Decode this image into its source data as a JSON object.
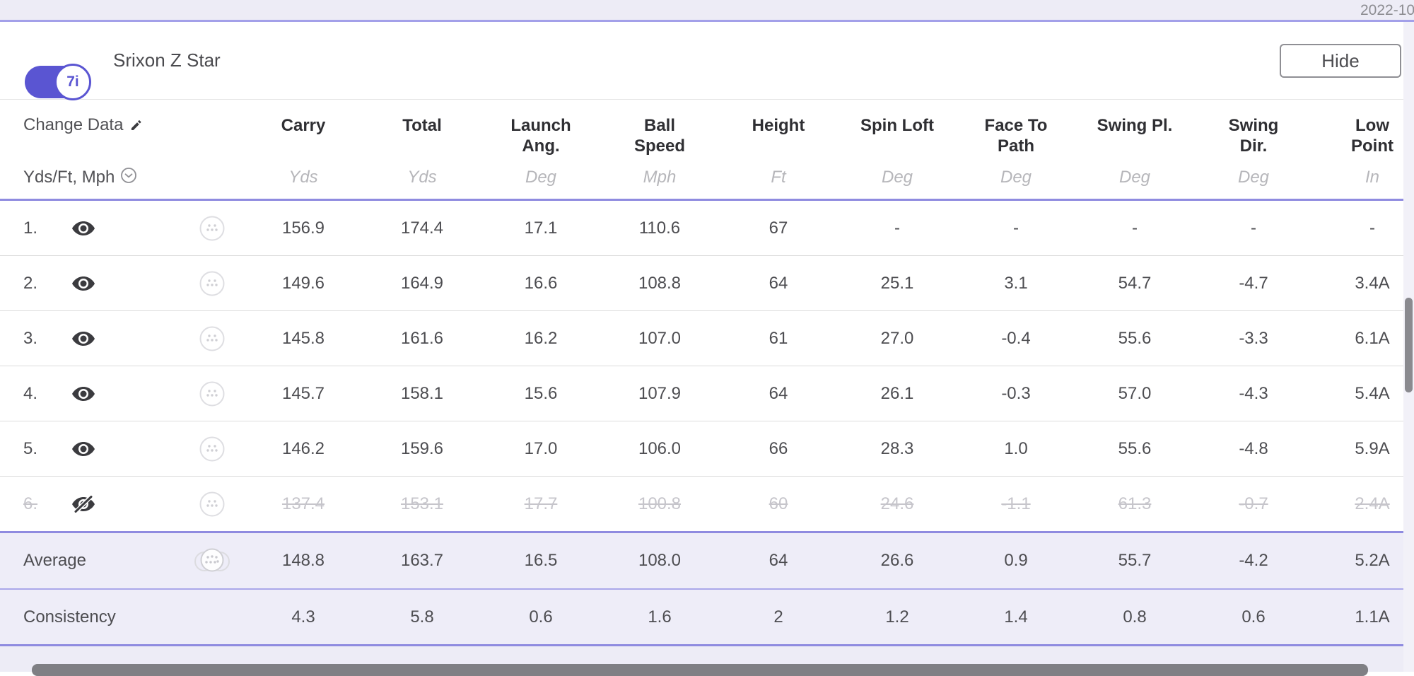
{
  "top_band": {
    "date": "2022-10"
  },
  "club_header": {
    "club_label": "7i",
    "ball_name": "Srixon Z Star",
    "hide_label": "Hide"
  },
  "table": {
    "change_data_label": "Change Data",
    "units_selector_label": "Yds/Ft, Mph",
    "columns": [
      {
        "label": "Carry",
        "unit": "Yds"
      },
      {
        "label": "Total",
        "unit": "Yds"
      },
      {
        "label": "Launch\nAng.",
        "unit": "Deg"
      },
      {
        "label": "Ball\nSpeed",
        "unit": "Mph"
      },
      {
        "label": "Height",
        "unit": "Ft"
      },
      {
        "label": "Spin Loft",
        "unit": "Deg"
      },
      {
        "label": "Face To\nPath",
        "unit": "Deg"
      },
      {
        "label": "Swing Pl.",
        "unit": "Deg"
      },
      {
        "label": "Swing\nDir.",
        "unit": "Deg"
      },
      {
        "label": "Low\nPoint",
        "unit": "In"
      }
    ],
    "shots": [
      {
        "num": "1.",
        "visible": true,
        "values": [
          "156.9",
          "174.4",
          "17.1",
          "110.6",
          "67",
          "-",
          "-",
          "-",
          "-",
          "-"
        ]
      },
      {
        "num": "2.",
        "visible": true,
        "values": [
          "149.6",
          "164.9",
          "16.6",
          "108.8",
          "64",
          "25.1",
          "3.1",
          "54.7",
          "-4.7",
          "3.4A"
        ]
      },
      {
        "num": "3.",
        "visible": true,
        "values": [
          "145.8",
          "161.6",
          "16.2",
          "107.0",
          "61",
          "27.0",
          "-0.4",
          "55.6",
          "-3.3",
          "6.1A"
        ]
      },
      {
        "num": "4.",
        "visible": true,
        "values": [
          "145.7",
          "158.1",
          "15.6",
          "107.9",
          "64",
          "26.1",
          "-0.3",
          "57.0",
          "-4.3",
          "5.4A"
        ]
      },
      {
        "num": "5.",
        "visible": true,
        "values": [
          "146.2",
          "159.6",
          "17.0",
          "106.0",
          "66",
          "28.3",
          "1.0",
          "55.6",
          "-4.8",
          "5.9A"
        ]
      },
      {
        "num": "6.",
        "visible": false,
        "values": [
          "137.4",
          "153.1",
          "17.7",
          "100.8",
          "60",
          "24.6",
          "-1.1",
          "61.3",
          "-0.7",
          "2.4A"
        ]
      }
    ],
    "average": {
      "label": "Average",
      "values": [
        "148.8",
        "163.7",
        "16.5",
        "108.0",
        "64",
        "26.6",
        "0.9",
        "55.7",
        "-4.2",
        "5.2A"
      ]
    },
    "consistency": {
      "label": "Consistency",
      "values": [
        "4.3",
        "5.8",
        "0.6",
        "1.6",
        "2",
        "1.2",
        "1.4",
        "0.8",
        "0.6",
        "1.1A"
      ]
    }
  },
  "colors": {
    "accent": "#5a55d2",
    "purple_border": "#8f8be0",
    "band_bg": "#edecf6",
    "summary_row_bg": "#eeedf8"
  }
}
